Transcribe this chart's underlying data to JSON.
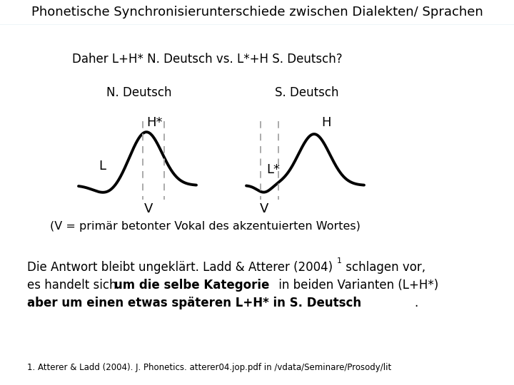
{
  "title": "Phonetische Synchronisierunterschiede zwischen Dialekten/ Sprachen",
  "title_fontsize": 13,
  "title_bg": "#ddeef5",
  "subtitle": "Daher L+H* N. Deutsch vs. L*+H S. Deutsch?",
  "subtitle_fontsize": 12,
  "nd_label": "N. Deutsch",
  "sd_label": "S. Deutsch",
  "vline_explanation": "(V = primär betonter Vokal des akzentuierten Wortes)",
  "body_text1": "Die Antwort bleibt ungeklärt. Ladd & Atterer (2004)",
  "body_text1_super": "1",
  "body_text1_end": " schlagen vor,",
  "body_text2a": "es handelt sich ",
  "body_text2b": "um die selbe Kategorie",
  "body_text2c": " in beiden Varianten (L+H*)",
  "body_text3a": "aber um einen etwas späteren L+H* in S. Deutsch",
  "body_text3b": ".",
  "footnote": "1. Atterer & Ladd (2004). J. Phonetics. atterer04.jop.pdf in /vdata/Seminare/Prosody/lit",
  "text_color": "#000000",
  "curve_color": "#000000",
  "dashed_color": "#aaaaaa",
  "bg_color": "#ffffff",
  "title_text_color": "#000000"
}
